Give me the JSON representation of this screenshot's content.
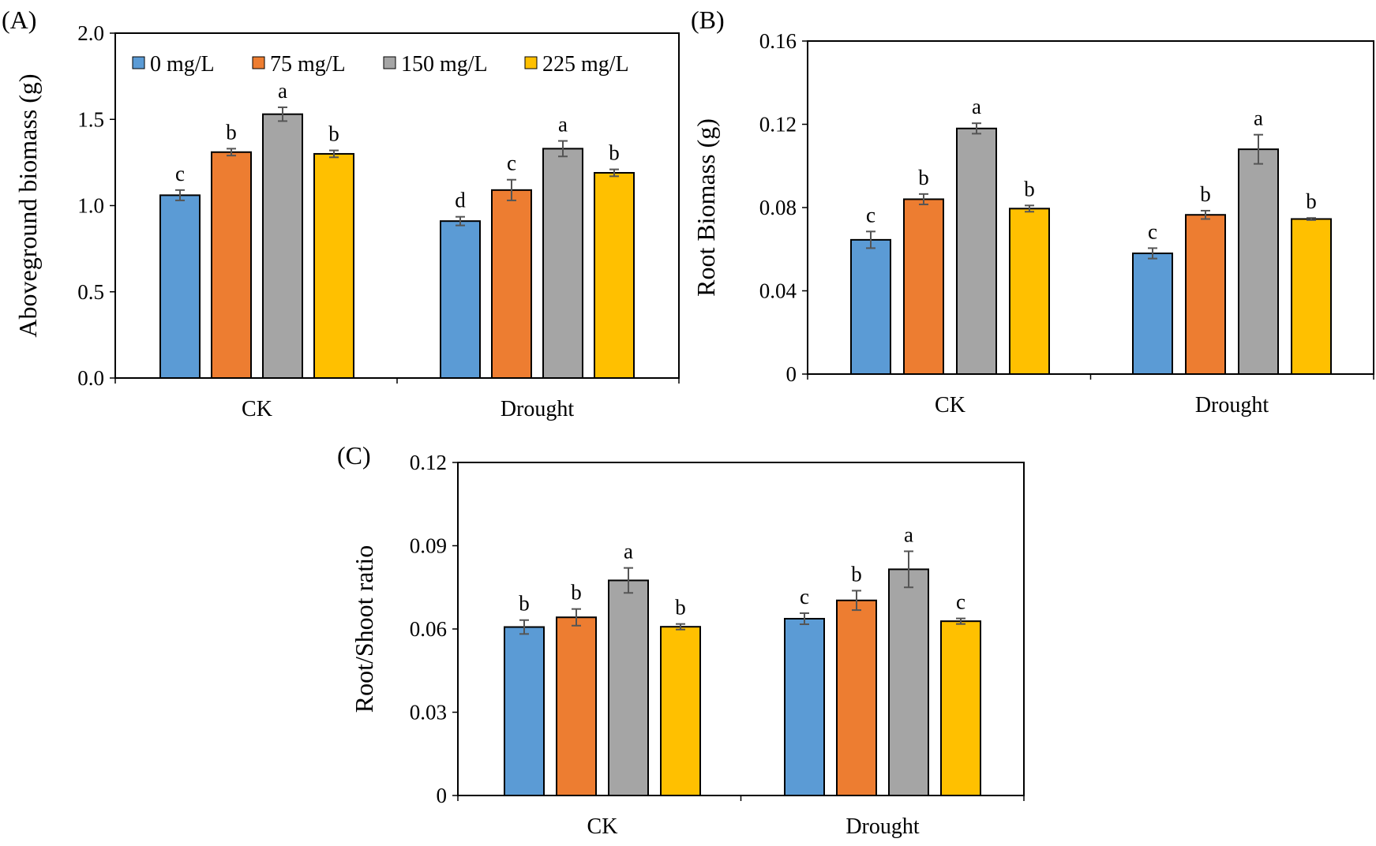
{
  "chart_data": [
    {
      "panel": "(A)",
      "type": "bar",
      "ylabel": "Aboveground  biomass (g)",
      "ylim": [
        0,
        2.0
      ],
      "yticks": [
        "0.0",
        "0.5",
        "1.0",
        "1.5",
        "2.0"
      ],
      "categories": [
        "CK",
        "Drought"
      ],
      "series": [
        {
          "name": "0 mg/L",
          "color": "#5B9BD5",
          "values": [
            1.06,
            0.91
          ],
          "errors": [
            0.03,
            0.025
          ],
          "letters": [
            "c",
            "d"
          ]
        },
        {
          "name": "75 mg/L",
          "color": "#ED7D31",
          "values": [
            1.31,
            1.09
          ],
          "errors": [
            0.02,
            0.06
          ],
          "letters": [
            "b",
            "c"
          ]
        },
        {
          "name": "150 mg/L",
          "color": "#A5A5A5",
          "values": [
            1.53,
            1.33
          ],
          "errors": [
            0.04,
            0.045
          ],
          "letters": [
            "a",
            "a"
          ]
        },
        {
          "name": "225 mg/L",
          "color": "#FFC000",
          "values": [
            1.3,
            1.19
          ],
          "errors": [
            0.02,
            0.02
          ],
          "letters": [
            "b",
            "b"
          ]
        }
      ]
    },
    {
      "panel": "(B)",
      "type": "bar",
      "ylabel": "Root Biomass (g)",
      "ylim": [
        0,
        0.16
      ],
      "yticks": [
        "0",
        "0.04",
        "0.08",
        "0.12",
        "0.16"
      ],
      "categories": [
        "CK",
        "Drought"
      ],
      "series": [
        {
          "name": "0 mg/L",
          "color": "#5B9BD5",
          "values": [
            0.0645,
            0.058
          ],
          "errors": [
            0.004,
            0.0025
          ],
          "letters": [
            "c",
            "c"
          ]
        },
        {
          "name": "75 mg/L",
          "color": "#ED7D31",
          "values": [
            0.084,
            0.0765
          ],
          "errors": [
            0.0025,
            0.002
          ],
          "letters": [
            "b",
            "b"
          ]
        },
        {
          "name": "150 mg/L",
          "color": "#A5A5A5",
          "values": [
            0.118,
            0.108
          ],
          "errors": [
            0.0025,
            0.007
          ],
          "letters": [
            "a",
            "a"
          ]
        },
        {
          "name": "225 mg/L",
          "color": "#FFC000",
          "values": [
            0.0795,
            0.0745
          ],
          "errors": [
            0.0015,
            0.0005
          ],
          "letters": [
            "b",
            "b"
          ]
        }
      ]
    },
    {
      "panel": "(C)",
      "type": "bar",
      "ylabel": "Root/Shoot ratio",
      "ylim": [
        0,
        0.12
      ],
      "yticks": [
        "0",
        "0.03",
        "0.06",
        "0.09",
        "0.12"
      ],
      "categories": [
        "CK",
        "Drought"
      ],
      "series": [
        {
          "name": "0 mg/L",
          "color": "#5B9BD5",
          "values": [
            0.0607,
            0.0637
          ],
          "errors": [
            0.0025,
            0.002
          ],
          "letters": [
            "b",
            "c"
          ]
        },
        {
          "name": "75 mg/L",
          "color": "#ED7D31",
          "values": [
            0.0642,
            0.0703
          ],
          "errors": [
            0.003,
            0.0035
          ],
          "letters": [
            "b",
            "b"
          ]
        },
        {
          "name": "150 mg/L",
          "color": "#A5A5A5",
          "values": [
            0.0775,
            0.0815
          ],
          "errors": [
            0.0045,
            0.0065
          ],
          "letters": [
            "a",
            "a"
          ]
        },
        {
          "name": "225 mg/L",
          "color": "#FFC000",
          "values": [
            0.0608,
            0.0628
          ],
          "errors": [
            0.001,
            0.001
          ],
          "letters": [
            "b",
            "c"
          ]
        }
      ]
    }
  ],
  "legend": {
    "placement": "top-left inside panel (A)",
    "entries": [
      {
        "label": "0 mg/L",
        "color": "#5B9BD5"
      },
      {
        "label": "75 mg/L",
        "color": "#ED7D31"
      },
      {
        "label": "150 mg/L",
        "color": "#A5A5A5"
      },
      {
        "label": "225 mg/L",
        "color": "#FFC000"
      }
    ]
  }
}
